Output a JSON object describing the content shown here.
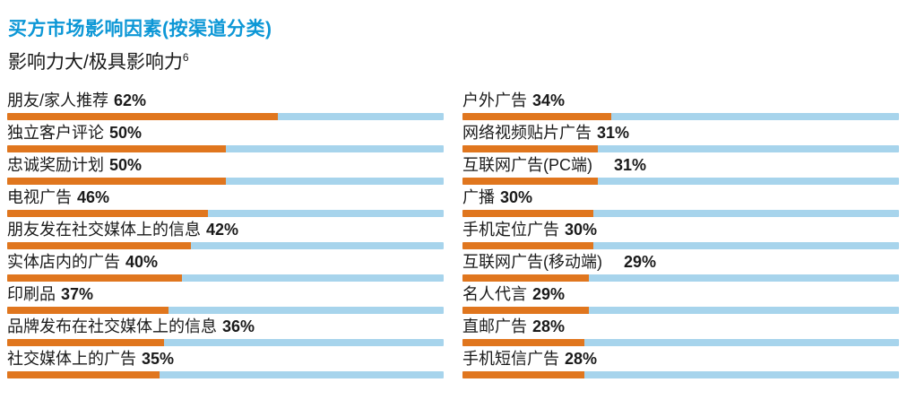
{
  "header": {
    "title": "买方市场影响因素(按渠道分类)",
    "subtitle": "影响力大/极具影响力",
    "subtitle_footnote": "6"
  },
  "colors": {
    "title_blue": "#0C97D6",
    "bar_fill_orange": "#E0761E",
    "bar_track_blue": "#A7D4EC",
    "text": "#1A1A1A",
    "background": "#FFFFFF"
  },
  "chart_data": {
    "type": "bar",
    "orientation": "horizontal",
    "unit": "%",
    "title": "买方市场影响因素(按渠道分类)",
    "subtitle": "影响力大/极具影响力6",
    "xlim": [
      0,
      100
    ],
    "grid": false,
    "legend": "none",
    "columns": [
      {
        "name": "left",
        "items": [
          {
            "label": "朋友/家人推荐",
            "value": 62
          },
          {
            "label": "独立客户评论",
            "value": 50
          },
          {
            "label": "忠诚奖励计划",
            "value": 50
          },
          {
            "label": "电视广告",
            "value": 46
          },
          {
            "label": "朋友发在社交媒体上的信息",
            "value": 42
          },
          {
            "label": "实体店内的广告",
            "value": 40
          },
          {
            "label": "印刷品",
            "value": 37
          },
          {
            "label": "品牌发布在社交媒体上的信息",
            "value": 36
          },
          {
            "label": "社交媒体上的广告",
            "value": 35
          }
        ]
      },
      {
        "name": "right",
        "items": [
          {
            "label": "户外广告",
            "value": 34
          },
          {
            "label": "网络视频贴片广告",
            "value": 31
          },
          {
            "label": "互联网广告(PC端)　",
            "value": 31
          },
          {
            "label": "广播",
            "value": 30
          },
          {
            "label": "手机定位广告",
            "value": 30
          },
          {
            "label": "互联网广告(移动端)　",
            "value": 29
          },
          {
            "label": "名人代言",
            "value": 29
          },
          {
            "label": "直邮广告",
            "value": 28
          },
          {
            "label": "手机短信广告",
            "value": 28
          }
        ]
      }
    ]
  }
}
